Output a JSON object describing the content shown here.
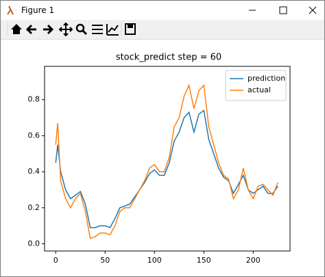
{
  "window": {
    "title": "Figure 1"
  },
  "chart_data": {
    "type": "line",
    "title": "stock_predict step = 60",
    "x": [
      0,
      2,
      5,
      10,
      15,
      20,
      25,
      30,
      35,
      40,
      45,
      50,
      55,
      60,
      65,
      70,
      75,
      80,
      85,
      90,
      95,
      100,
      105,
      110,
      115,
      120,
      125,
      130,
      135,
      140,
      145,
      150,
      155,
      160,
      165,
      170,
      175,
      180,
      185,
      190,
      195,
      200,
      205,
      210,
      215,
      220,
      225
    ],
    "series": [
      {
        "name": "prediction",
        "color": "#1f77b4",
        "values": [
          0.45,
          0.55,
          0.4,
          0.3,
          0.25,
          0.27,
          0.29,
          0.22,
          0.09,
          0.09,
          0.1,
          0.1,
          0.09,
          0.14,
          0.2,
          0.21,
          0.22,
          0.26,
          0.3,
          0.34,
          0.39,
          0.41,
          0.38,
          0.38,
          0.45,
          0.57,
          0.62,
          0.7,
          0.73,
          0.62,
          0.72,
          0.74,
          0.58,
          0.5,
          0.42,
          0.37,
          0.35,
          0.28,
          0.33,
          0.38,
          0.3,
          0.28,
          0.3,
          0.32,
          0.28,
          0.28,
          0.32
        ]
      },
      {
        "name": "actual",
        "color": "#ff7f0e",
        "values": [
          0.55,
          0.67,
          0.35,
          0.25,
          0.2,
          0.25,
          0.28,
          0.18,
          0.03,
          0.04,
          0.06,
          0.06,
          0.05,
          0.1,
          0.18,
          0.2,
          0.2,
          0.25,
          0.3,
          0.35,
          0.42,
          0.44,
          0.4,
          0.4,
          0.48,
          0.65,
          0.7,
          0.82,
          0.88,
          0.75,
          0.85,
          0.88,
          0.65,
          0.55,
          0.45,
          0.38,
          0.36,
          0.25,
          0.3,
          0.42,
          0.3,
          0.25,
          0.32,
          0.33,
          0.3,
          0.27,
          0.34
        ]
      }
    ],
    "xlim": [
      -11.3,
      237.3
    ],
    "xticks": [
      0,
      50,
      100,
      150,
      200
    ],
    "ylim": [
      -0.04,
      0.985
    ],
    "yticks": [
      {
        "value": 0,
        "label": "0.0"
      },
      0.2,
      0.4,
      0.6,
      0.8
    ],
    "legend": "upper right"
  }
}
